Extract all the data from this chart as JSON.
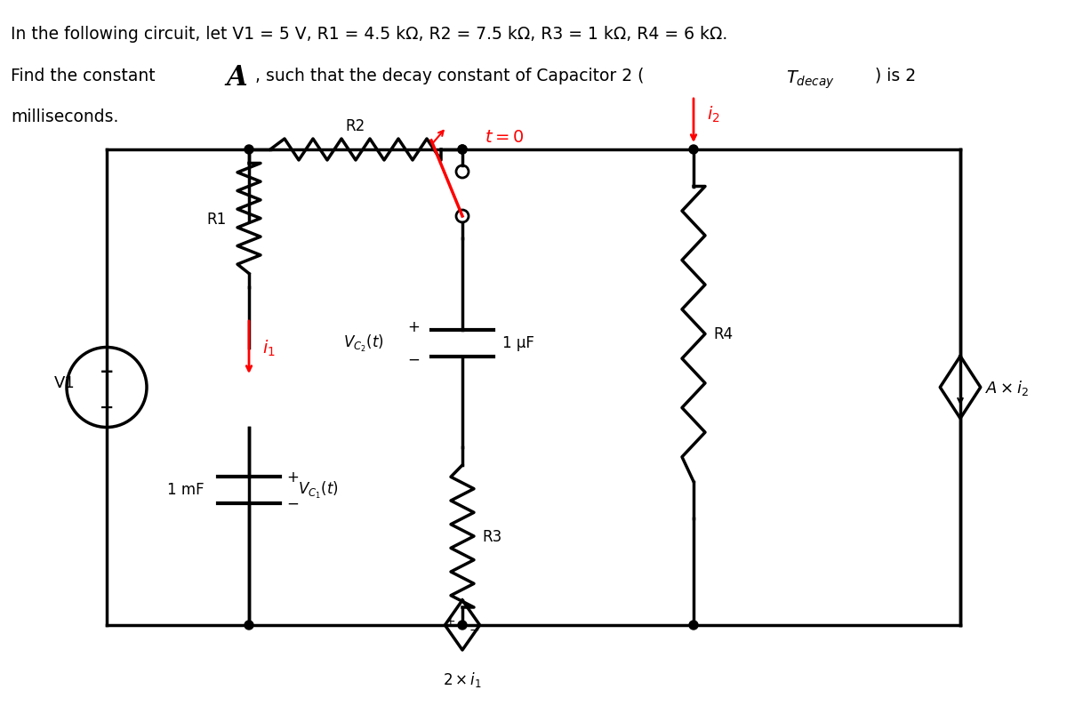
{
  "title_line1": "In the following circuit, let V1 = 5 V, R1 = 4.5 kΩ, R2 = 7.5 kΩ, R3 = 1 kΩ, R4 = 6 kΩ.",
  "title_line2": "Find the constant ",
  "title_line2b": "A",
  "title_line2c": ", such that the decay constant of Capacitor 2 (",
  "title_line2d": "T",
  "title_line2e": "decay",
  "title_line2f": ") is 2",
  "title_line3": "milliseconds.",
  "bg_color": "#ffffff",
  "line_color": "#000000",
  "red_color": "#ff0000",
  "lw": 2.5,
  "component_lw": 2.5
}
